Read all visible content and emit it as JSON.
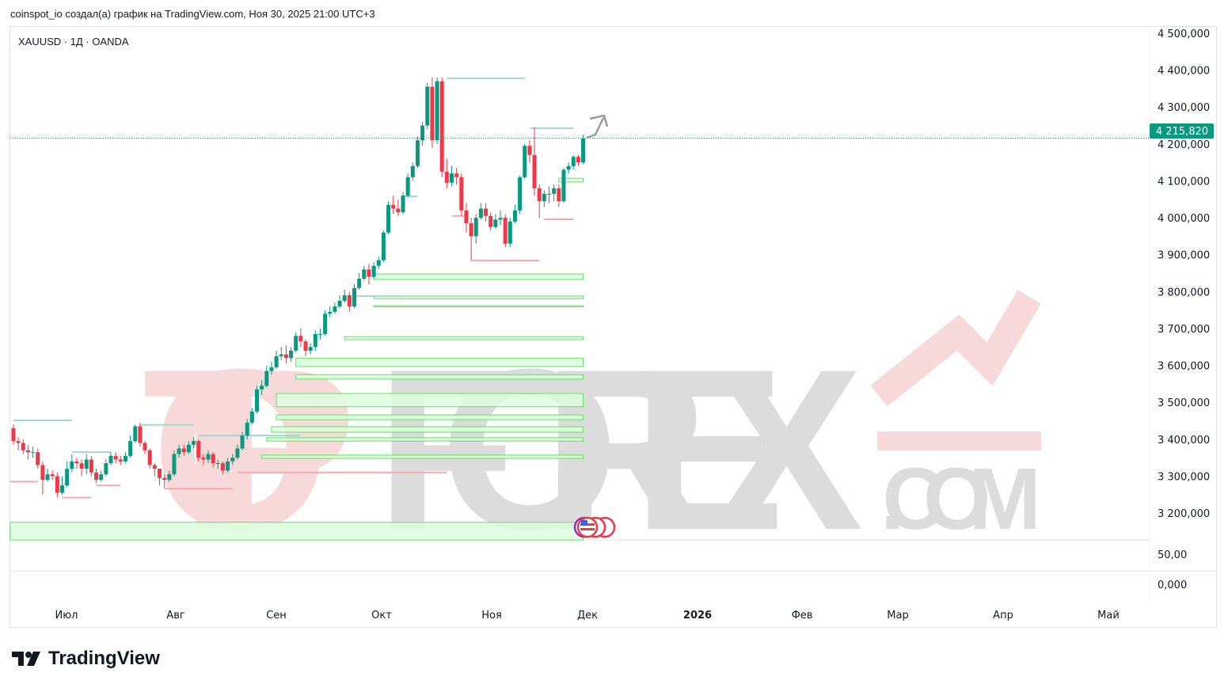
{
  "header": {
    "title": "coinspot_io создал(а) график на TradingView.com, Ноя 30, 2025 21:00 UTC+3"
  },
  "symbol": {
    "label": "XAUUSD · 1Д · OANDA"
  },
  "watermark": {
    "text_a": "TOP",
    "text_b": "FOREX",
    "text_c": ".COM",
    "color_a": "#f7d9d9",
    "color_b": "#dcdcdc"
  },
  "branding": {
    "logo_text": "TradingView"
  },
  "colors": {
    "up": "#089981",
    "down": "#f23645",
    "zone": "#5ee35e",
    "zone_fill": "#dcffdc",
    "high_line": "#9fd8cf",
    "low_line": "#f7a9ae"
  },
  "current_price": {
    "label": "4 215,820",
    "value": 4215.82
  },
  "lower_pane": {
    "labels": [
      "50,00",
      "0,000"
    ]
  },
  "chart_data": {
    "type": "candlestick",
    "title": "XAUUSD · 1Д · OANDA",
    "xlabel": "",
    "ylabel": "",
    "ylim": [
      3100,
      4520
    ],
    "grid": false,
    "y_ticks": [
      4500,
      4400,
      4300,
      4200,
      4100,
      4000,
      3900,
      3800,
      3700,
      3600,
      3500,
      3400,
      3300,
      3200
    ],
    "y_tick_labels": [
      "4 500,000",
      "4 400,000",
      "4 300,000",
      "4 200,000",
      "4 100,000",
      "4 000,000",
      "3 900,000",
      "3 800,000",
      "3 700,000",
      "3 600,000",
      "3 500,000",
      "3 400,000",
      "3 300,000",
      "3 200,000"
    ],
    "x_tick_labels": [
      "Июл",
      "Авг",
      "Сен",
      "Окт",
      "Ноя",
      "Дек",
      "2026",
      "Фев",
      "Мар",
      "Апр",
      "Май"
    ],
    "open": [
      3430,
      3395,
      3390,
      3370,
      3365,
      3365,
      3330,
      3290,
      3305,
      3300,
      3255,
      3275,
      3320,
      3340,
      3335,
      3320,
      3345,
      3310,
      3290,
      3305,
      3335,
      3355,
      3345,
      3340,
      3355,
      3395,
      3435,
      3390,
      3370,
      3330,
      3320,
      3295,
      3290,
      3305,
      3360,
      3375,
      3365,
      3385,
      3395,
      3350,
      3345,
      3360,
      3335,
      3335,
      3315,
      3340,
      3350,
      3375,
      3410,
      3445,
      3475,
      3535,
      3545,
      3585,
      3595,
      3625,
      3630,
      3620,
      3640,
      3680,
      3665,
      3640,
      3650,
      3685,
      3685,
      3740,
      3745,
      3760,
      3775,
      3790,
      3760,
      3810,
      3835,
      3860,
      3840,
      3870,
      3885,
      3960,
      4035,
      4025,
      4015,
      4060,
      4110,
      4140,
      4210,
      4250,
      4355,
      4210,
      4370,
      4125,
      4095,
      4120,
      4110,
      4020,
      3985,
      3950,
      4000,
      4025,
      4005,
      3975,
      3995,
      4000,
      3930,
      3990,
      4020,
      4110,
      4195,
      4170,
      4080,
      4045,
      4065,
      4065,
      4080,
      4045,
      4130,
      4140,
      4165,
      4150
    ],
    "high": [
      3440,
      3405,
      3400,
      3385,
      3380,
      3375,
      3340,
      3320,
      3315,
      3310,
      3300,
      3340,
      3360,
      3350,
      3345,
      3360,
      3355,
      3320,
      3315,
      3345,
      3365,
      3365,
      3355,
      3365,
      3410,
      3440,
      3445,
      3395,
      3375,
      3335,
      3320,
      3305,
      3315,
      3370,
      3385,
      3385,
      3395,
      3405,
      3400,
      3360,
      3370,
      3365,
      3345,
      3340,
      3350,
      3360,
      3385,
      3420,
      3455,
      3485,
      3545,
      3560,
      3600,
      3610,
      3640,
      3650,
      3655,
      3650,
      3690,
      3700,
      3670,
      3660,
      3695,
      3700,
      3750,
      3760,
      3770,
      3790,
      3805,
      3800,
      3820,
      3850,
      3870,
      3875,
      3880,
      3895,
      3965,
      4045,
      4060,
      4050,
      4070,
      4120,
      4150,
      4220,
      4260,
      4365,
      4380,
      4380,
      4380,
      4160,
      4140,
      4135,
      4120,
      4040,
      4000,
      4010,
      4040,
      4040,
      4015,
      4010,
      4020,
      4010,
      4000,
      4035,
      4115,
      4200,
      4210,
      4245,
      4090,
      4075,
      4085,
      4090,
      4090,
      4135,
      4150,
      4170,
      4170,
      4225
    ],
    "low": [
      3385,
      3370,
      3360,
      3345,
      3350,
      3320,
      3250,
      3285,
      3290,
      3242,
      3250,
      3270,
      3310,
      3320,
      3300,
      3305,
      3300,
      3280,
      3285,
      3300,
      3330,
      3335,
      3330,
      3335,
      3350,
      3390,
      3380,
      3360,
      3320,
      3300,
      3275,
      3268,
      3285,
      3300,
      3350,
      3355,
      3360,
      3375,
      3340,
      3330,
      3335,
      3325,
      3320,
      3305,
      3310,
      3330,
      3345,
      3370,
      3400,
      3440,
      3470,
      3520,
      3540,
      3575,
      3590,
      3615,
      3605,
      3610,
      3635,
      3650,
      3625,
      3630,
      3640,
      3670,
      3680,
      3730,
      3740,
      3755,
      3770,
      3745,
      3755,
      3805,
      3830,
      3820,
      3835,
      3860,
      3880,
      3955,
      4010,
      4005,
      4010,
      4055,
      4100,
      4135,
      4195,
      4240,
      4190,
      4200,
      4110,
      4080,
      4085,
      4090,
      4005,
      3960,
      3885,
      3930,
      3995,
      3990,
      3965,
      3970,
      3980,
      3920,
      3920,
      3985,
      4010,
      4105,
      4150,
      4060,
      4000,
      4030,
      4040,
      4045,
      4030,
      4040,
      4120,
      4130,
      4140,
      4145
    ],
    "close": [
      3395,
      3390,
      3370,
      3365,
      3365,
      3330,
      3290,
      3305,
      3300,
      3255,
      3275,
      3320,
      3340,
      3335,
      3320,
      3345,
      3310,
      3290,
      3305,
      3335,
      3355,
      3345,
      3340,
      3355,
      3395,
      3435,
      3390,
      3370,
      3330,
      3320,
      3295,
      3290,
      3305,
      3360,
      3375,
      3365,
      3385,
      3395,
      3350,
      3345,
      3360,
      3335,
      3335,
      3315,
      3340,
      3350,
      3375,
      3410,
      3445,
      3475,
      3535,
      3545,
      3585,
      3595,
      3625,
      3630,
      3620,
      3640,
      3680,
      3665,
      3640,
      3650,
      3685,
      3685,
      3740,
      3745,
      3760,
      3775,
      3790,
      3760,
      3810,
      3835,
      3860,
      3840,
      3870,
      3885,
      3960,
      4035,
      4025,
      4015,
      4060,
      4110,
      4140,
      4210,
      4250,
      4355,
      4210,
      4370,
      4125,
      4095,
      4120,
      4110,
      4020,
      3985,
      3950,
      4000,
      4025,
      4005,
      3975,
      3995,
      4000,
      3930,
      3990,
      4020,
      4110,
      4195,
      4170,
      4080,
      4045,
      4065,
      4065,
      4080,
      4045,
      4130,
      4140,
      4165,
      4150,
      4215
    ],
    "zones": [
      {
        "top": 3848,
        "bottom": 3833,
        "from": 74,
        "to": 117
      },
      {
        "top": 3788,
        "bottom": 3781,
        "from": 74,
        "to": 117
      },
      {
        "top": 3762,
        "bottom": 3759,
        "from": 74,
        "to": 117
      },
      {
        "top": 3678,
        "bottom": 3670,
        "from": 68,
        "to": 117
      },
      {
        "top": 3620,
        "bottom": 3597,
        "from": 58,
        "to": 117
      },
      {
        "top": 3575,
        "bottom": 3563,
        "from": 58,
        "to": 117
      },
      {
        "top": 3524,
        "bottom": 3488,
        "from": 54,
        "to": 117
      },
      {
        "top": 3466,
        "bottom": 3453,
        "from": 54,
        "to": 117
      },
      {
        "top": 3434,
        "bottom": 3419,
        "from": 53,
        "to": 117
      },
      {
        "top": 3404,
        "bottom": 3395,
        "from": 52,
        "to": 117
      },
      {
        "top": 3357,
        "bottom": 3348,
        "from": 51,
        "to": 117
      },
      {
        "top": 3175,
        "bottom": 3127,
        "from": -1,
        "to": 117
      },
      {
        "top": 4107,
        "bottom": 4097,
        "from": 112,
        "to": 117
      }
    ],
    "high_levels": [
      {
        "price": 4378,
        "from": 89,
        "to": 105
      },
      {
        "price": 4243,
        "from": 106,
        "to": 115
      },
      {
        "price": 4058,
        "from": 80,
        "to": 83
      },
      {
        "price": 3788,
        "from": 70,
        "to": 80
      },
      {
        "price": 3451,
        "from": 0,
        "to": 12
      },
      {
        "price": 3439,
        "from": 26,
        "to": 37
      },
      {
        "price": 3410,
        "from": 38,
        "to": 59
      },
      {
        "price": 3365,
        "from": 12,
        "to": 20
      }
    ],
    "low_levels": [
      {
        "price": 3884,
        "from": 94,
        "to": 108
      },
      {
        "price": 3996,
        "from": 109,
        "to": 115
      },
      {
        "price": 4005,
        "from": 90,
        "to": 93
      },
      {
        "price": 3310,
        "from": 46,
        "to": 89
      },
      {
        "price": 3266,
        "from": 31,
        "to": 45
      },
      {
        "price": 3242,
        "from": 10,
        "to": 16
      },
      {
        "price": 3285,
        "from": -1,
        "to": 5
      },
      {
        "price": 3275,
        "from": 17,
        "to": 22
      }
    ]
  }
}
